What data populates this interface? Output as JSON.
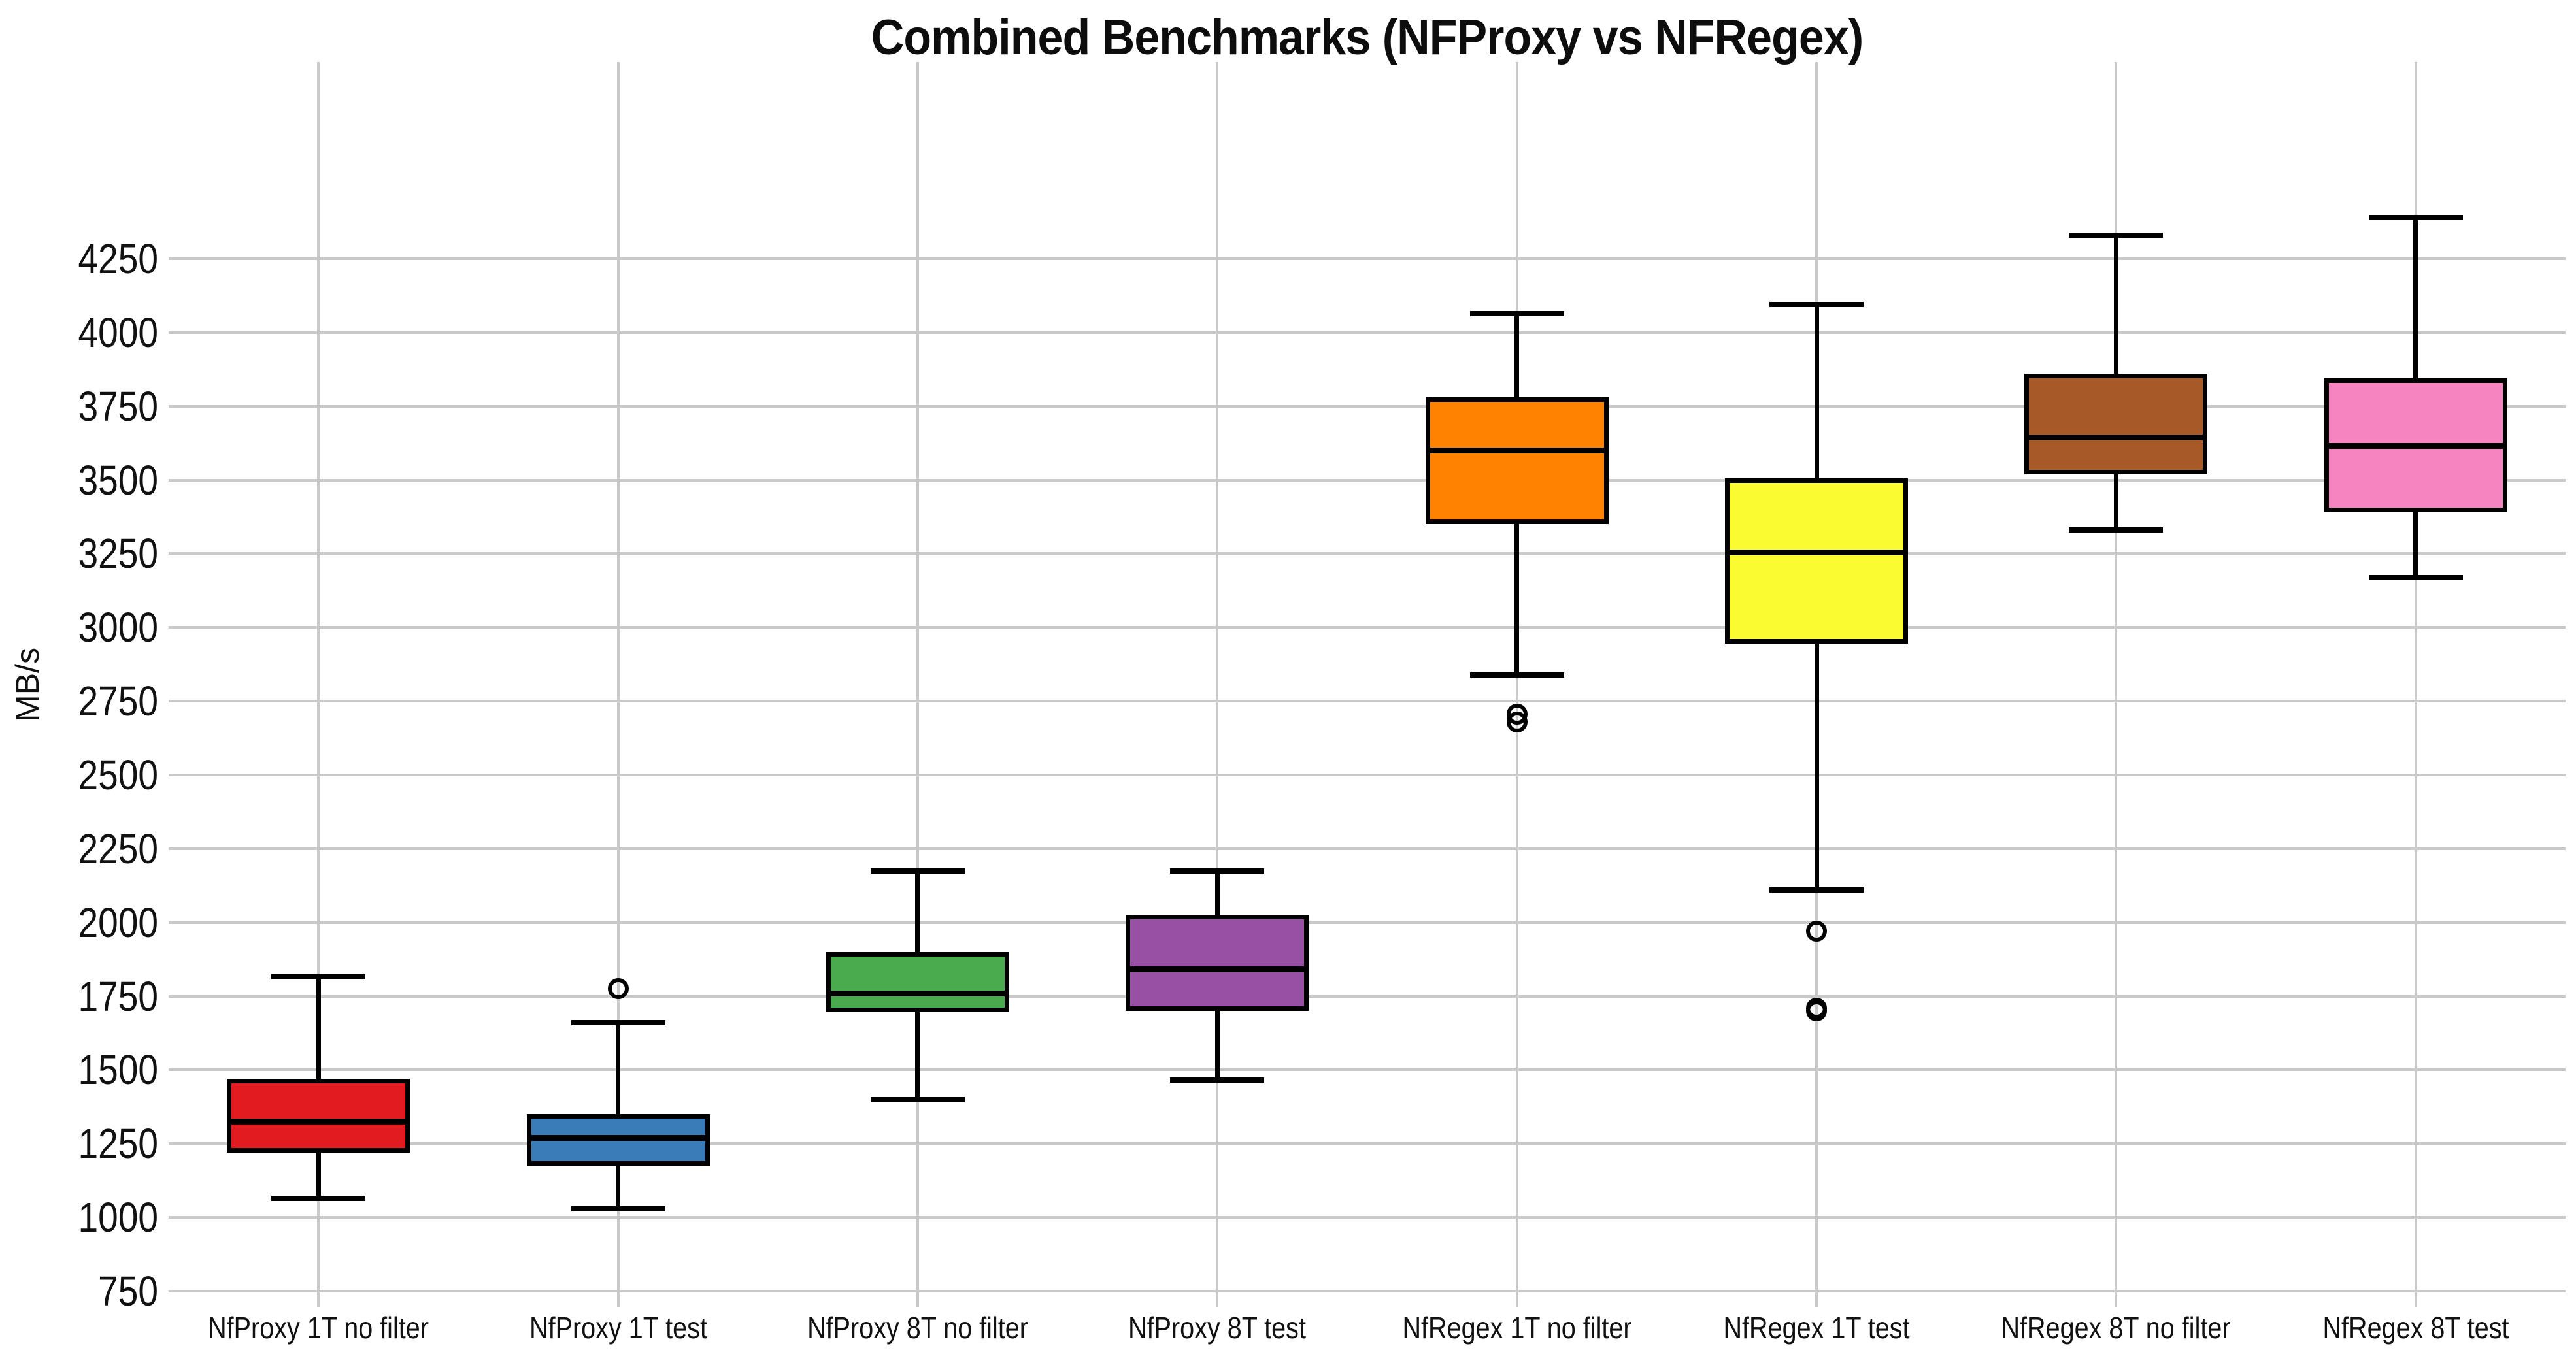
{
  "page": {
    "background": "#ffffff"
  },
  "chart_data": {
    "type": "box",
    "title": "Combined Benchmarks (NFProxy vs NFRegex)",
    "ylabel": "MB/s",
    "xlabel": "",
    "ylim": [
      700,
      4900
    ],
    "yticks": [
      750,
      1000,
      1250,
      1500,
      1750,
      2000,
      2250,
      2500,
      2750,
      3000,
      3250,
      3500,
      3750,
      4000,
      4250
    ],
    "grid": {
      "horizontal": true,
      "vertical": true,
      "color": "#c9c9c9"
    },
    "legend": "none",
    "colors": {
      "box_edge": "#000000",
      "median": "#000000",
      "text": "#111111",
      "background": "#ffffff"
    },
    "categories": [
      "NfProxy 1T no filter",
      "NfProxy 1T test",
      "NfProxy 8T no filter",
      "NfProxy 8T test",
      "NfRegex 1T no filter",
      "NfRegex 1T test",
      "NfRegex 8T no filter",
      "NfRegex 8T test"
    ],
    "series": [
      {
        "label": "NfProxy 1T no filter",
        "color": "#e11b1f",
        "whisker_low": 1065,
        "q1": 1220,
        "median": 1325,
        "q3": 1470,
        "whisker_high": 1815,
        "outliers": []
      },
      {
        "label": "NfProxy 1T test",
        "color": "#3a7cb8",
        "whisker_low": 1030,
        "q1": 1175,
        "median": 1270,
        "q3": 1350,
        "whisker_high": 1660,
        "outliers": [
          1775
        ]
      },
      {
        "label": "NfProxy 8T no filter",
        "color": "#4aab4e",
        "whisker_low": 1400,
        "q1": 1695,
        "median": 1760,
        "q3": 1900,
        "whisker_high": 2175,
        "outliers": []
      },
      {
        "label": "NfProxy 8T test",
        "color": "#9850a5",
        "whisker_low": 1465,
        "q1": 1700,
        "median": 1840,
        "q3": 2025,
        "whisker_high": 2175,
        "outliers": []
      },
      {
        "label": "NfRegex 1T no filter",
        "color": "#ff8200",
        "whisker_low": 2840,
        "q1": 3350,
        "median": 3600,
        "q3": 3780,
        "whisker_high": 4065,
        "outliers": [
          2705,
          2680
        ]
      },
      {
        "label": "NfRegex 1T test",
        "color": "#fbfb32",
        "whisker_low": 2110,
        "q1": 2945,
        "median": 3255,
        "q3": 3505,
        "whisker_high": 4095,
        "outliers": [
          1970,
          1710,
          1700
        ]
      },
      {
        "label": "NfRegex 8T no filter",
        "color": "#a85928",
        "whisker_low": 3330,
        "q1": 3520,
        "median": 3645,
        "q3": 3860,
        "whisker_high": 4330,
        "outliers": []
      },
      {
        "label": "NfRegex 8T test",
        "color": "#f584c1",
        "whisker_low": 3170,
        "q1": 3390,
        "median": 3615,
        "q3": 3845,
        "whisker_high": 4390,
        "outliers": []
      }
    ]
  }
}
